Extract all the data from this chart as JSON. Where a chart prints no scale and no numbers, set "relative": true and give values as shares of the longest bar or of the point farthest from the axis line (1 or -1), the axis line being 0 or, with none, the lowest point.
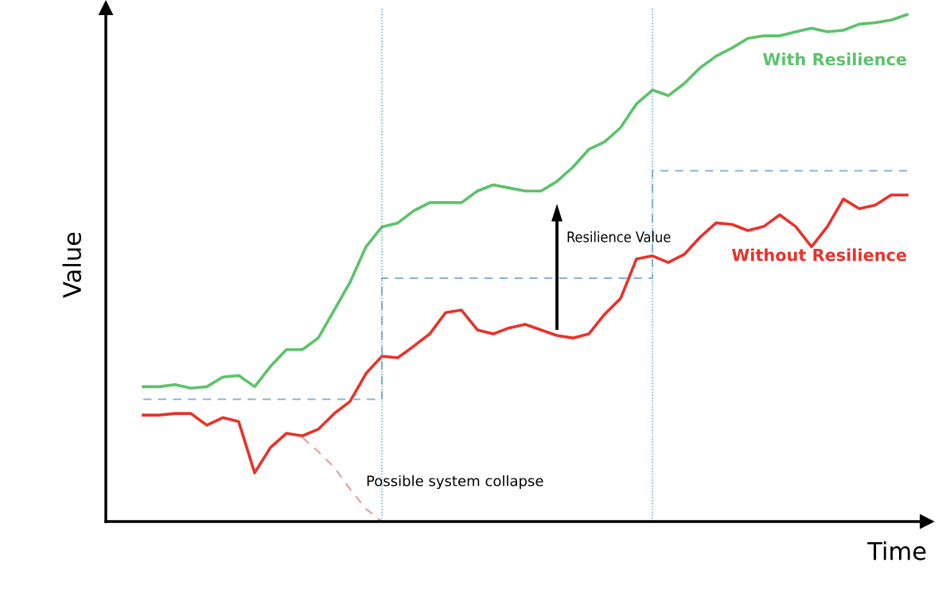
{
  "chart_data": {
    "type": "line",
    "relative": true,
    "xlabel": "Time",
    "ylabel": "Value",
    "legend": false,
    "categories": [
      null,
      null,
      null,
      null,
      null,
      null,
      null,
      null,
      null,
      null,
      null,
      null,
      null,
      null,
      null,
      null,
      null,
      null,
      null,
      null,
      null,
      null,
      null,
      null,
      null,
      null,
      null,
      null,
      null,
      null,
      null,
      null,
      null,
      null,
      null,
      null,
      null,
      null,
      null,
      null,
      null,
      null,
      null,
      null,
      null,
      null,
      null,
      null,
      null
    ],
    "series": [
      {
        "name": "With Resilience",
        "color": "#5cc26a",
        "values": [
          0.266,
          0.266,
          0.27,
          0.263,
          0.266,
          0.285,
          0.288,
          0.266,
          0.306,
          0.339,
          0.339,
          0.362,
          0.417,
          0.472,
          0.542,
          0.581,
          0.589,
          0.613,
          0.629,
          0.629,
          0.629,
          0.652,
          0.664,
          0.658,
          0.652,
          0.652,
          0.671,
          0.699,
          0.734,
          0.749,
          0.777,
          0.824,
          0.851,
          0.84,
          0.864,
          0.895,
          0.918,
          0.934,
          0.953,
          0.958,
          0.958,
          0.966,
          0.973,
          0.966,
          0.969,
          0.981,
          0.984,
          0.989,
          1.0
        ]
      },
      {
        "name": "Without Resilience",
        "color": "#e8322a",
        "values": [
          0.21,
          0.21,
          0.213,
          0.213,
          0.19,
          0.205,
          0.197,
          0.096,
          0.146,
          0.174,
          0.169,
          0.182,
          0.213,
          0.237,
          0.292,
          0.326,
          0.323,
          0.346,
          0.37,
          0.412,
          0.417,
          0.378,
          0.37,
          0.382,
          0.389,
          0.378,
          0.367,
          0.362,
          0.37,
          0.409,
          0.44,
          0.518,
          0.524,
          0.511,
          0.527,
          0.561,
          0.589,
          0.586,
          0.574,
          0.582,
          0.605,
          0.582,
          0.542,
          0.582,
          0.636,
          0.617,
          0.624,
          0.644,
          0.644
        ]
      },
      {
        "type": "line",
        "line_style": "dashed",
        "color": "#e8a0a0",
        "values": [
          null,
          null,
          null,
          null,
          null,
          null,
          null,
          null,
          null,
          null,
          0.166,
          0.138,
          0.107,
          0.064,
          0.025,
          0.0,
          null,
          null,
          null,
          null,
          null,
          null,
          null,
          null,
          null,
          null,
          null,
          null,
          null,
          null,
          null,
          null,
          null,
          null,
          null,
          null,
          null,
          null,
          null,
          null,
          null,
          null,
          null,
          null,
          null,
          null,
          null,
          null,
          null
        ]
      },
      {
        "type": "step",
        "line_style": "dashed",
        "color": "#8fb4d9",
        "values": [
          0.241,
          0.241,
          0.241,
          0.241,
          0.241,
          0.241,
          0.241,
          0.241,
          0.241,
          0.241,
          0.241,
          0.241,
          0.241,
          0.241,
          0.241,
          0.48,
          0.48,
          0.48,
          0.48,
          0.48,
          0.48,
          0.48,
          0.48,
          0.48,
          0.48,
          0.48,
          0.48,
          0.48,
          0.48,
          0.48,
          0.48,
          0.48,
          0.692,
          0.692,
          0.692,
          0.692,
          0.692,
          0.692,
          0.692,
          0.692,
          0.692,
          0.692,
          0.692,
          0.692,
          0.692,
          0.692,
          0.692,
          0.692,
          0.692
        ]
      }
    ],
    "annotations": [
      "Resilience Value",
      "Possible system collapse"
    ]
  }
}
